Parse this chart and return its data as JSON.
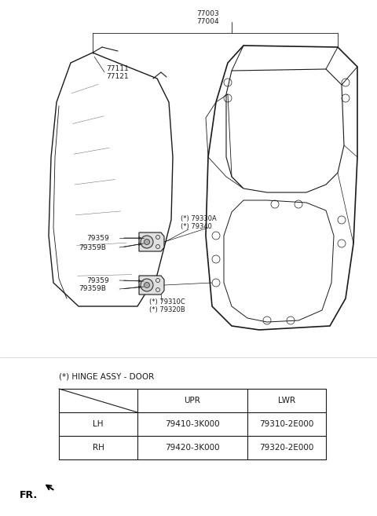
{
  "bg_color": "#ffffff",
  "title_label": "(*) HINGE ASSY - DOOR",
  "table_rows": [
    [
      "LH",
      "79410-3K000",
      "79310-2E000"
    ],
    [
      "RH",
      "79420-3K000",
      "79320-2E000"
    ]
  ],
  "fr_label": "FR.",
  "line_color": "#1a1a1a",
  "font_color": "#1a1a1a",
  "font_size_label": 6.5,
  "font_size_table": 7.5,
  "font_size_title": 7.5
}
